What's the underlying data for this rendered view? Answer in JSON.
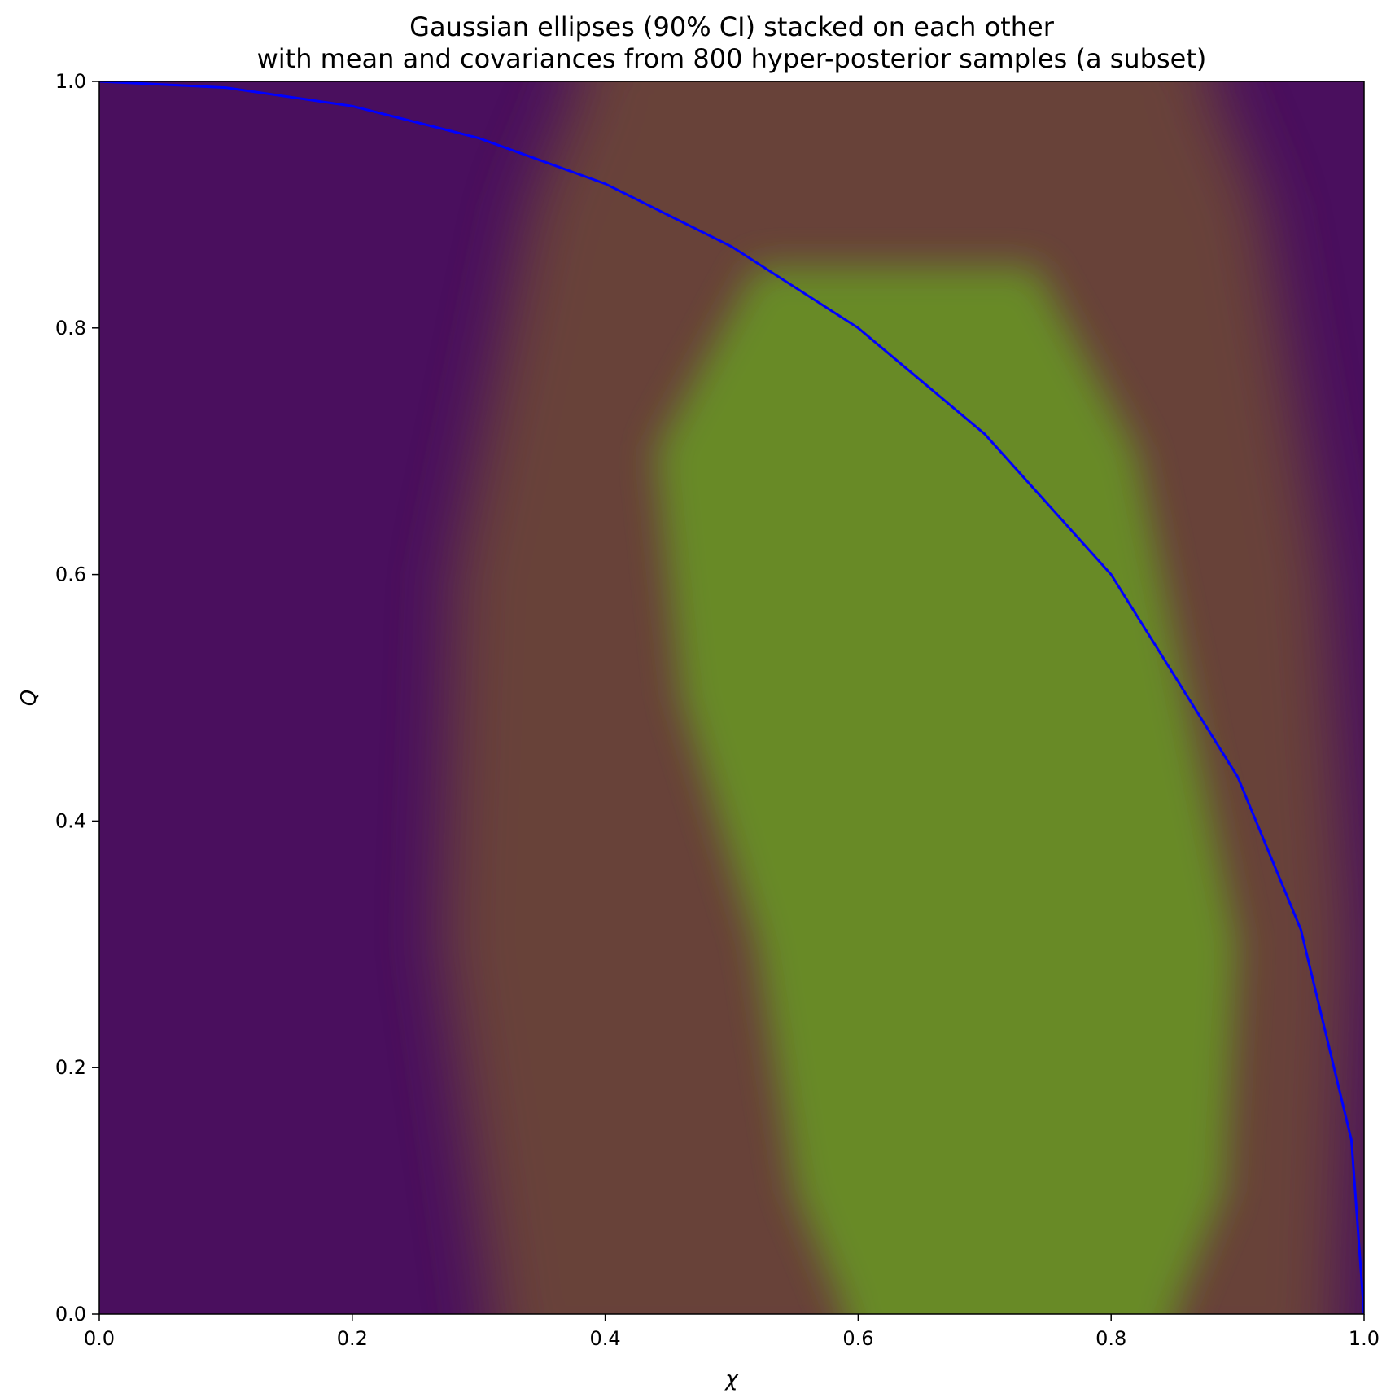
{
  "chart_data": {
    "type": "heatmap",
    "title": "Gaussian ellipses (90% CI) stacked on each other",
    "subtitle": "with mean and covariances from 800 hyper-posterior samples (a subset)",
    "xlabel": "χ",
    "ylabel": "Q",
    "xlim": [
      0.0,
      1.0
    ],
    "ylim": [
      0.0,
      1.0
    ],
    "x_ticks": [
      "0.0",
      "0.2",
      "0.4",
      "0.6",
      "0.8",
      "1.0"
    ],
    "y_ticks": [
      "0.0",
      "0.2",
      "0.4",
      "0.6",
      "0.8",
      "1.0"
    ],
    "grid": false,
    "legend": "none",
    "colors": {
      "background_low": "#4a0f5e",
      "mid": "#6a4538",
      "high": "#688a28",
      "curve": "#0000ff"
    },
    "density_band": {
      "high_density_region": [
        {
          "y": 0.0,
          "x_left": 0.59,
          "x_right": 0.85
        },
        {
          "y": 0.1,
          "x_left": 0.55,
          "x_right": 0.89
        },
        {
          "y": 0.3,
          "x_left": 0.52,
          "x_right": 0.9
        },
        {
          "y": 0.5,
          "x_left": 0.46,
          "x_right": 0.86
        },
        {
          "y": 0.7,
          "x_left": 0.44,
          "x_right": 0.82
        },
        {
          "y": 0.85,
          "x_left": 0.52,
          "x_right": 0.74
        }
      ],
      "mid_density_region": [
        {
          "y": 0.0,
          "x_left": 0.31,
          "x_right": 0.98
        },
        {
          "y": 0.3,
          "x_left": 0.27,
          "x_right": 0.99
        },
        {
          "y": 0.6,
          "x_left": 0.28,
          "x_right": 0.97
        },
        {
          "y": 0.9,
          "x_left": 0.34,
          "x_right": 0.92
        },
        {
          "y": 1.0,
          "x_left": 0.38,
          "x_right": 0.88
        }
      ]
    },
    "series": [
      {
        "type": "line",
        "x": [
          0.0,
          0.1,
          0.2,
          0.3,
          0.4,
          0.5,
          0.6,
          0.7,
          0.8,
          0.9,
          0.95,
          0.99,
          1.0
        ],
        "y": [
          1.0,
          0.995,
          0.98,
          0.954,
          0.917,
          0.866,
          0.8,
          0.714,
          0.6,
          0.436,
          0.312,
          0.141,
          0.0
        ]
      }
    ]
  }
}
